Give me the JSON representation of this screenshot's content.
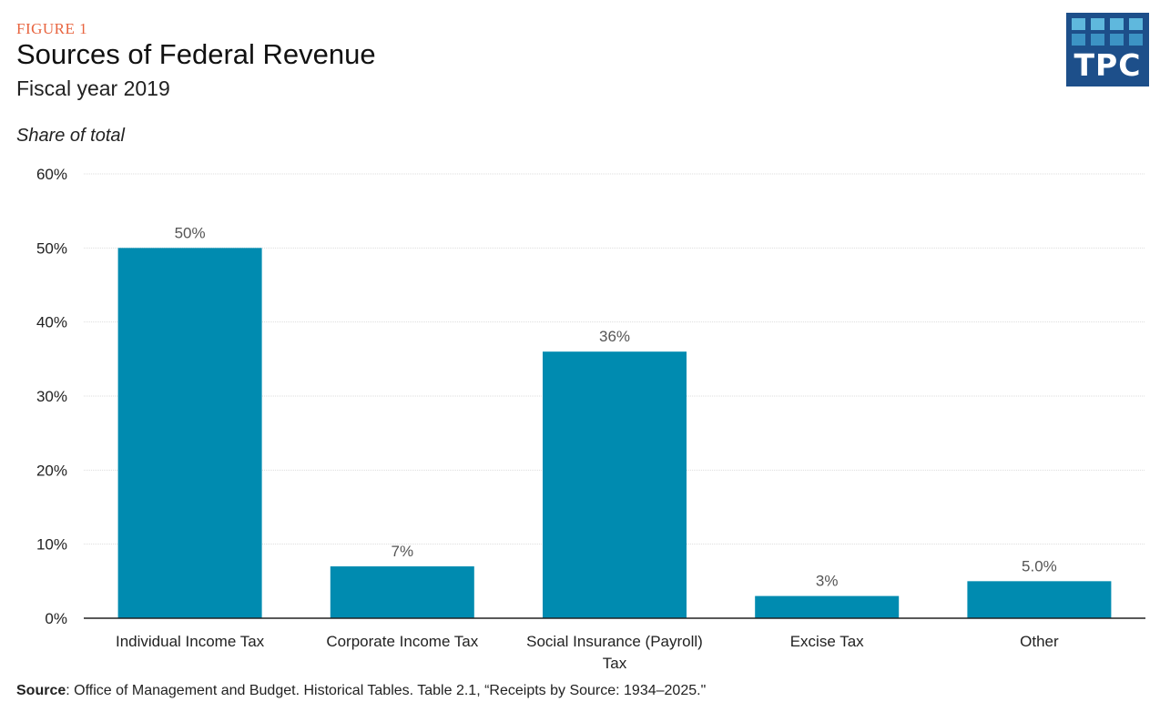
{
  "figure_label": "FIGURE 1",
  "title": "Sources of Federal Revenue",
  "subtitle": "Fiscal year 2019",
  "logo": {
    "text": "TPC",
    "bg": "#1d4f8a",
    "square_light": "#5fb8dd",
    "square_mid": "#3c93c4"
  },
  "source": {
    "label": "Source",
    "text": ": Office of Management and Budget. Historical Tables. Table 2.1, “Receipts by Source: 1934–2025.\""
  },
  "colors": {
    "bar": "#008bb0",
    "grid": "#dddddd",
    "axis": "#222222",
    "figure_label": "#e8643f"
  },
  "chart_data": {
    "type": "bar",
    "title": "Sources of Federal Revenue",
    "subtitle": "Fiscal year 2019",
    "xlabel": "",
    "ylabel": "Share of total",
    "ylim": [
      0,
      60
    ],
    "yticks": [
      0,
      10,
      20,
      30,
      40,
      50,
      60
    ],
    "ytick_labels": [
      "0%",
      "10%",
      "20%",
      "30%",
      "40%",
      "50%",
      "60%"
    ],
    "grid": true,
    "categories": [
      [
        "Individual Income Tax"
      ],
      [
        "Corporate Income Tax"
      ],
      [
        "Social Insurance (Payroll)",
        "Tax"
      ],
      [
        "Excise Tax"
      ],
      [
        "Other"
      ]
    ],
    "values": [
      50,
      7,
      36,
      3,
      5
    ],
    "data_labels": [
      "50%",
      "7%",
      "36%",
      "3%",
      "5.0%"
    ]
  }
}
